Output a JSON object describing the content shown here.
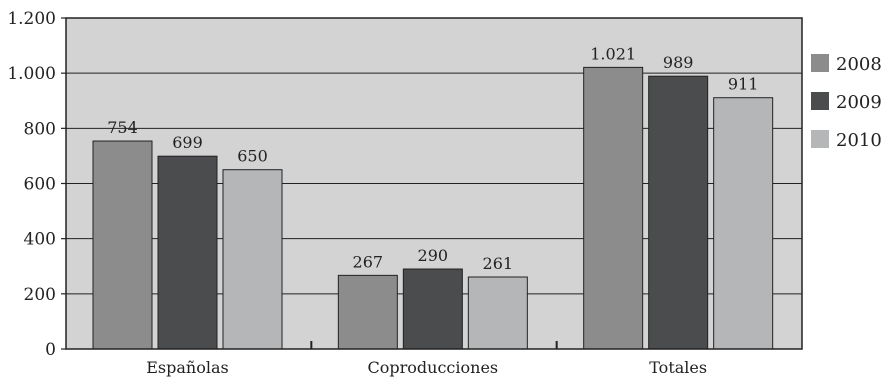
{
  "chart_data": {
    "type": "bar",
    "title": "",
    "xlabel": "",
    "ylabel": "",
    "categories": [
      "Españolas",
      "Coproducciones",
      "Totales"
    ],
    "series": [
      {
        "name": "2008",
        "values": [
          754,
          267,
          1021
        ],
        "labels": [
          "754",
          "267",
          "1.021"
        ],
        "color": "#8c8c8c"
      },
      {
        "name": "2009",
        "values": [
          699,
          290,
          989
        ],
        "labels": [
          "699",
          "290",
          "989"
        ],
        "color": "#4a4c4e"
      },
      {
        "name": "2010",
        "values": [
          650,
          261,
          911
        ],
        "labels": [
          "650",
          "261",
          "911"
        ],
        "color": "#b4b6b8"
      }
    ],
    "ylim": [
      0,
      1200
    ],
    "yticks": [
      0,
      200,
      400,
      600,
      800,
      1000,
      1200
    ],
    "ytick_labels": [
      "0",
      "200",
      "400",
      "600",
      "800",
      "1.000",
      "1.200"
    ],
    "grid": true,
    "legend": "right",
    "plot_background": "#d3d3d3"
  }
}
